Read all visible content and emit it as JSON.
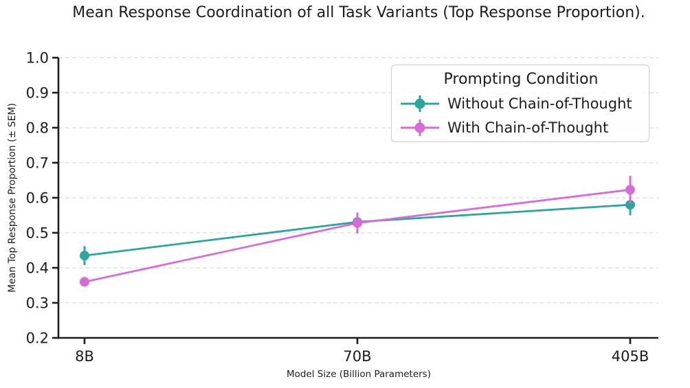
{
  "chart_data": {
    "type": "line",
    "title": "Mean Response Coordination of all Task Variants (Top Response Proportion).",
    "xlabel": "Model Size (Billion Parameters)",
    "ylabel": "Mean Top Response Proportion (± SEM)",
    "categories": [
      "8B",
      "70B",
      "405B"
    ],
    "ylim": [
      0.2,
      1.0
    ],
    "yticks": [
      1.0,
      0.9,
      0.8,
      0.7,
      0.6,
      0.5,
      0.4,
      0.3,
      0.2
    ],
    "grid": "horizontal dashed",
    "error_bars": "± SEM, vertical, no caps",
    "legend": {
      "title": "Prompting Condition",
      "position": "upper right"
    },
    "series": [
      {
        "name": "Without Chain-of-Thought",
        "color": "#2aa79e",
        "values": [
          0.435,
          0.531,
          0.58
        ],
        "sem": [
          0.027,
          0.02,
          0.03
        ]
      },
      {
        "name": "With Chain-of-Thought",
        "color": "#d96bd6",
        "values": [
          0.36,
          0.528,
          0.623
        ],
        "sem": [
          0.008,
          0.03,
          0.04
        ]
      }
    ],
    "text_color": "#1c1c1c",
    "grid_color": "#e2e2e2"
  }
}
